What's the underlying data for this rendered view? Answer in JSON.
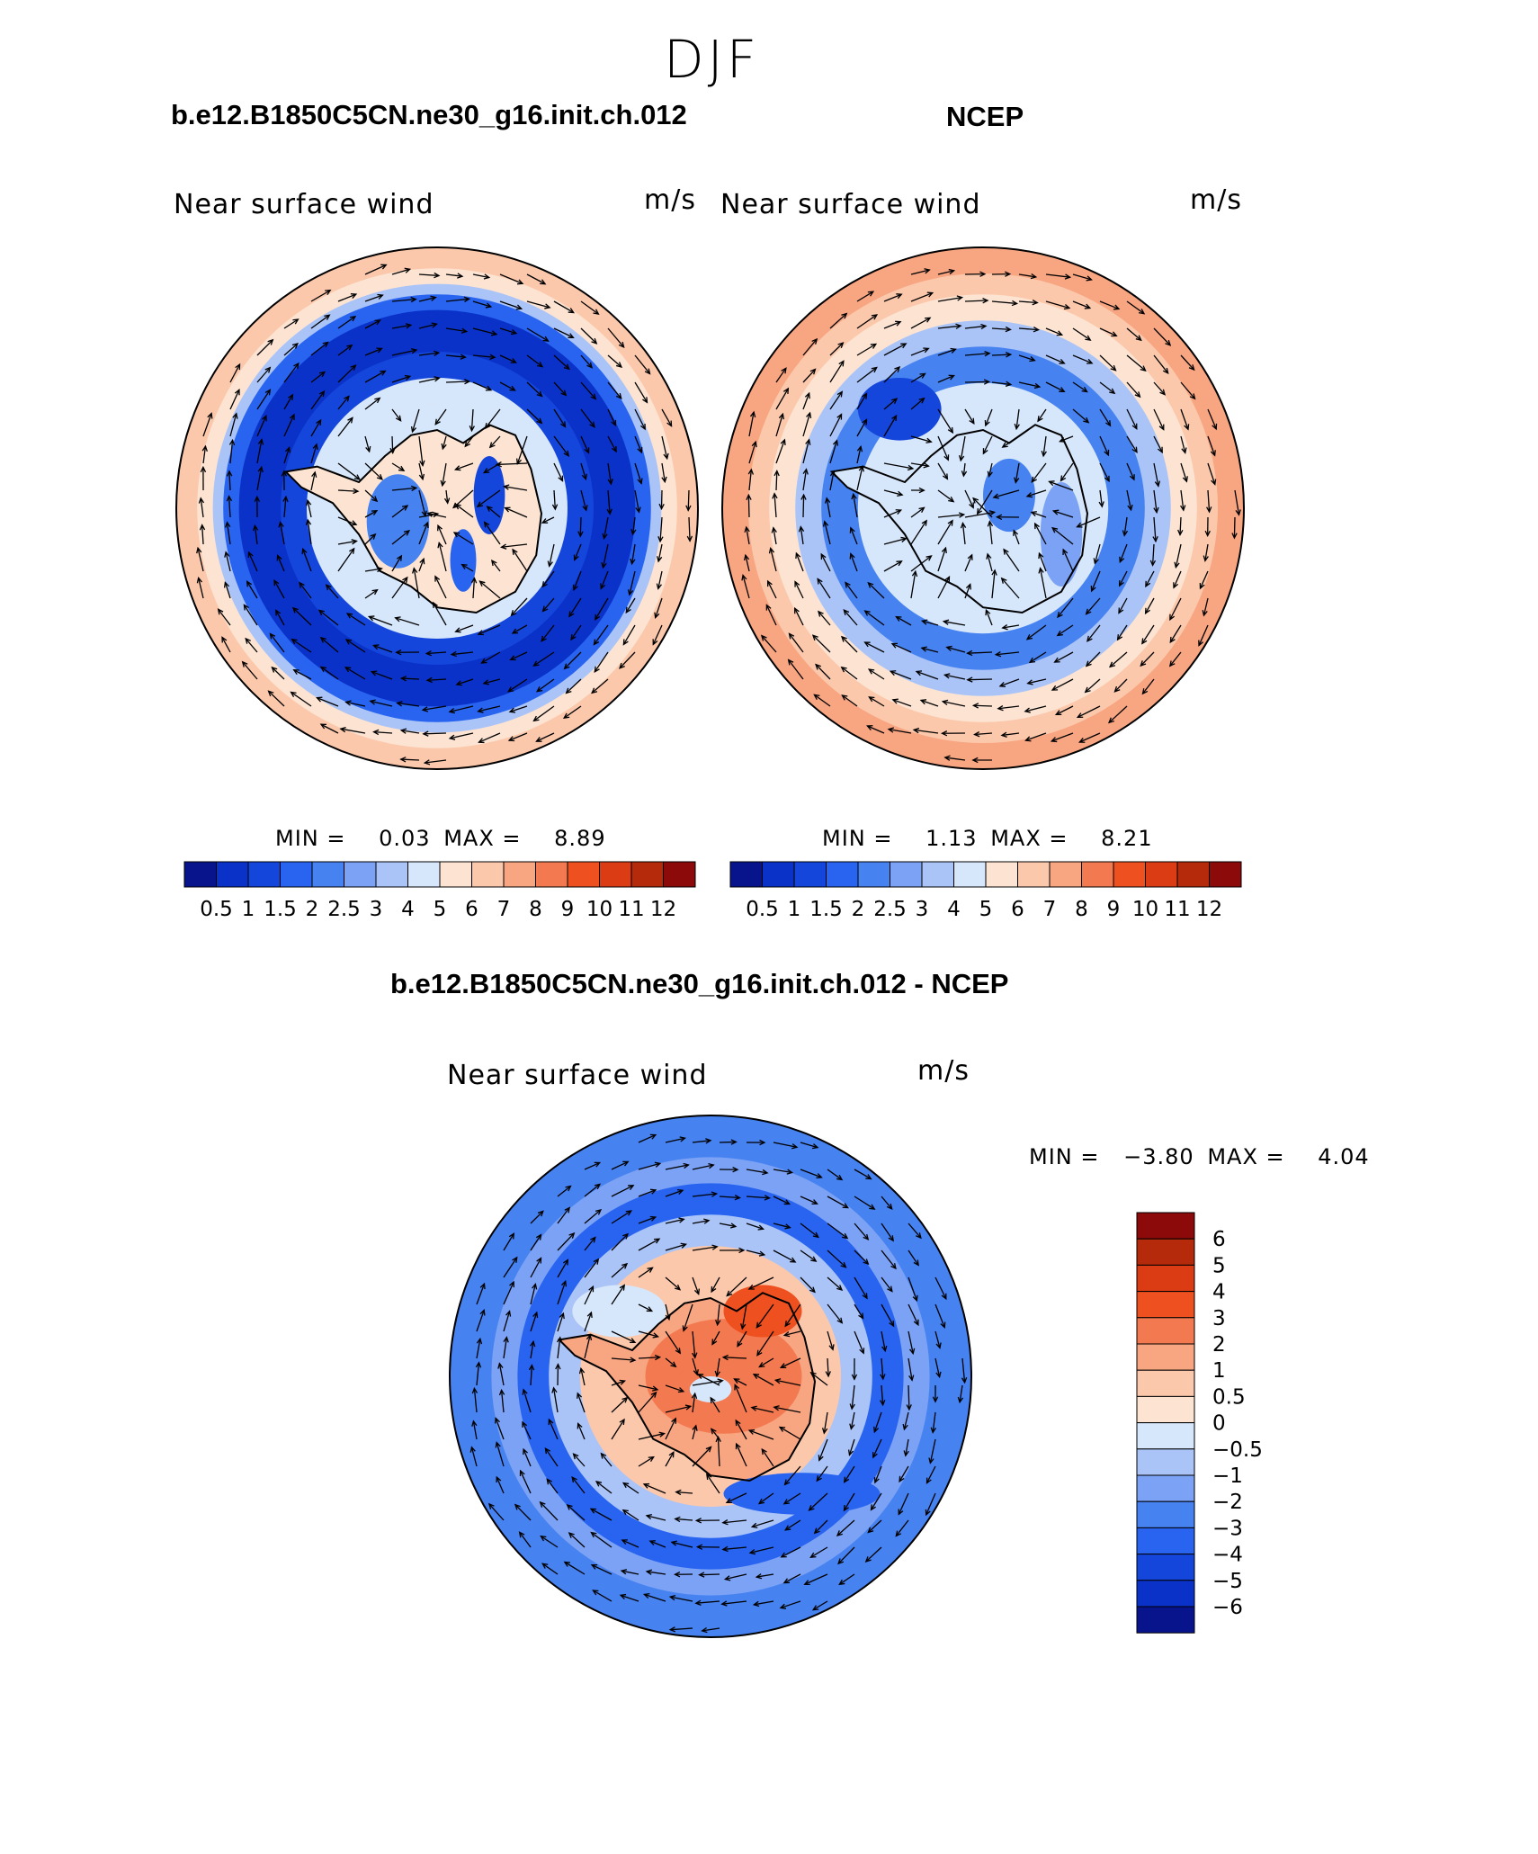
{
  "figure": {
    "title": "DJF",
    "panels": [
      {
        "heading": "b.e12.B1850C5CN.ne30_g16.init.ch.012",
        "label": "Near surface wind",
        "units": "m/s",
        "min_label": "MIN =",
        "min_value": "0.03",
        "max_label": "MAX =",
        "max_value": "8.89"
      },
      {
        "heading": "NCEP",
        "label": "Near surface wind",
        "units": "m/s",
        "min_label": "MIN =",
        "min_value": "1.13",
        "max_label": "MAX =",
        "max_value": "8.21"
      },
      {
        "heading": "b.e12.B1850C5CN.ne30_g16.init.ch.012 - NCEP",
        "label": "Near surface wind",
        "units": "m/s",
        "min_label": "MIN =",
        "min_value": "−3.80",
        "max_label": "MAX =",
        "max_value": "4.04"
      }
    ]
  },
  "colorbars": {
    "abs": {
      "labels": [
        "0.5",
        "1",
        "1.5",
        "2",
        "2.5",
        "3",
        "4",
        "5",
        "6",
        "7",
        "8",
        "9",
        "10",
        "11",
        "12"
      ],
      "colors": [
        "#08148c",
        "#0a32c8",
        "#1446dc",
        "#2864f0",
        "#4682f0",
        "#7ba2f5",
        "#aac4f8",
        "#d6e6fb",
        "#fde4d2",
        "#fcc8ab",
        "#f8a582",
        "#f37a50",
        "#ee5020",
        "#dc3c14",
        "#b42a0a",
        "#8c0a0a"
      ]
    },
    "diff": {
      "labels": [
        "6",
        "5",
        "4",
        "3",
        "2",
        "1",
        "0.5",
        "0",
        "−0.5",
        "−1",
        "−2",
        "−3",
        "−4",
        "−5",
        "−6"
      ],
      "colors": [
        "#8c0a0a",
        "#b42a0a",
        "#dc3c14",
        "#ee5020",
        "#f37a50",
        "#f8a582",
        "#fcc8ab",
        "#fde4d2",
        "#d6e6fb",
        "#aac4f8",
        "#7ba2f5",
        "#4682f0",
        "#2864f0",
        "#1446dc",
        "#0a32c8",
        "#08148c"
      ]
    }
  }
}
